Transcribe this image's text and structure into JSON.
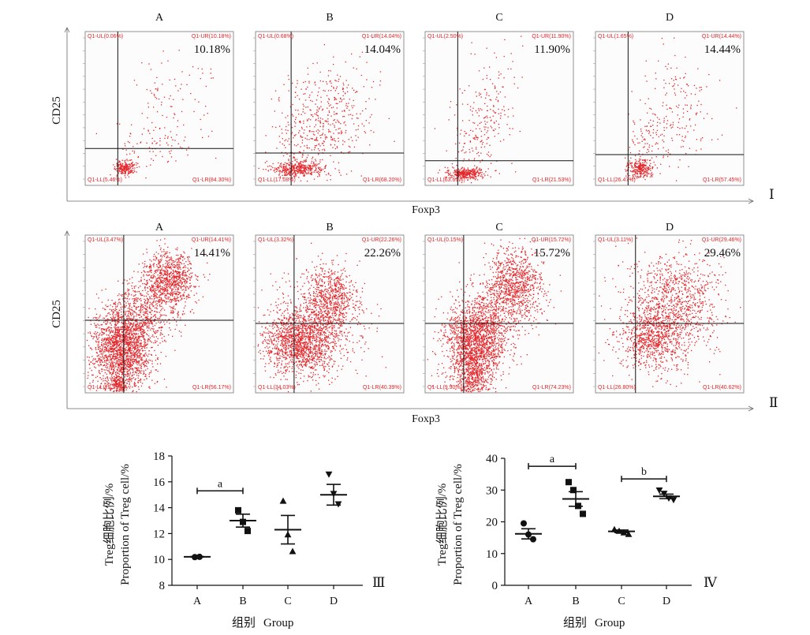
{
  "figure": {
    "rows": [
      {
        "label": "Ⅰ",
        "x_axis_label": "Foxp3",
        "y_axis_label": "CD25",
        "panels": [
          {
            "letter": "A",
            "percent_label": "10.18%",
            "quadrants": {
              "ul": "Q1-UL(0.06%)",
              "ur": "Q1-UR(10.18%)",
              "ll": "Q1-LL(5.46%)",
              "lr": "Q1-LR(84.30%)"
            }
          },
          {
            "letter": "B",
            "percent_label": "14.04%",
            "quadrants": {
              "ul": "Q1-UL(0.68%)",
              "ur": "Q1-UR(14.04%)",
              "ll": "Q1-LL(17.08%)",
              "lr": "Q1-LR(68.20%)"
            }
          },
          {
            "letter": "C",
            "percent_label": "11.90%",
            "quadrants": {
              "ul": "Q1-UL(2.50%)",
              "ur": "Q1-UR(11.90%)",
              "ll": "Q1-LL(63.61%)",
              "lr": "Q1-LR(21.53%)"
            }
          },
          {
            "letter": "D",
            "percent_label": "14.44%",
            "quadrants": {
              "ul": "Q1-UL(1.65%)",
              "ur": "Q1-UR(14.44%)",
              "ll": "Q1-LL(26.47%)",
              "lr": "Q1-LR(57.45%)"
            }
          }
        ]
      },
      {
        "label": "Ⅱ",
        "x_axis_label": "Foxp3",
        "y_axis_label": "CD25",
        "panels": [
          {
            "letter": "A",
            "percent_label": "14.41%",
            "quadrants": {
              "ul": "Q1-UL(3.47%)",
              "ur": "Q1-UR(14.41%)",
              "ll": "Q1-LL(25.95%)",
              "lr": "Q1-LR(56.17%)"
            }
          },
          {
            "letter": "B",
            "percent_label": "22.26%",
            "quadrants": {
              "ul": "Q1-UL(3.32%)",
              "ur": "Q1-UR(22.26%)",
              "ll": "Q1-LL(34.03%)",
              "lr": "Q1-LR(40.39%)"
            }
          },
          {
            "letter": "C",
            "percent_label": "15.72%",
            "quadrants": {
              "ul": "Q1-UL(0.15%)",
              "ur": "Q1-UR(15.72%)",
              "ll": "Q1-LL(9.90%)",
              "lr": "Q1-LR(74.23%)"
            }
          },
          {
            "letter": "D",
            "percent_label": "29.46%",
            "quadrants": {
              "ul": "Q1-UL(3.11%)",
              "ur": "Q1-UR(29.46%)",
              "ll": "Q1-LL(26.80%)",
              "lr": "Q1-LR(40.62%)"
            }
          }
        ]
      }
    ],
    "dot_color": "#e4262a",
    "line_color": "#111111"
  },
  "chart_data": [
    {
      "type": "scatter",
      "panel_label": "Ⅲ",
      "categories": [
        "A",
        "B",
        "C",
        "D"
      ],
      "ylabel_cn": "Treg细胞比例/%",
      "ylabel_en": "Proportion of Treg cell/%",
      "xlabel_cn": "组别",
      "xlabel_en": "Group",
      "ylim": [
        8,
        18
      ],
      "yticks": [
        8,
        10,
        12,
        14,
        16,
        18
      ],
      "markers": [
        "circle",
        "square",
        "triangle-up",
        "triangle-down"
      ],
      "groups": [
        {
          "category": "A",
          "points": [
            10.18,
            10.2
          ],
          "mean": 10.2,
          "sem": 0.02
        },
        {
          "category": "B",
          "points": [
            13.8,
            12.9,
            12.2
          ],
          "mean": 13.0,
          "sem": 0.5
        },
        {
          "category": "C",
          "points": [
            14.5,
            11.9,
            10.6
          ],
          "mean": 12.3,
          "sem": 1.1
        },
        {
          "category": "D",
          "points": [
            16.6,
            15.1,
            14.3
          ],
          "mean": 15.0,
          "sem": 0.8
        }
      ],
      "significance": [
        {
          "label": "a",
          "from": "A",
          "to": "B",
          "y": 15.3
        }
      ]
    },
    {
      "type": "scatter",
      "panel_label": "Ⅳ",
      "categories": [
        "A",
        "B",
        "C",
        "D"
      ],
      "ylabel_cn": "Treg细胞比例/%",
      "ylabel_en": "Proportion of Treg cell/%",
      "xlabel_cn": "组别",
      "xlabel_en": "Group",
      "ylim": [
        0,
        40
      ],
      "yticks": [
        0,
        10,
        20,
        30,
        40
      ],
      "markers": [
        "circle",
        "square",
        "triangle-up",
        "triangle-down"
      ],
      "groups": [
        {
          "category": "A",
          "points": [
            19.5,
            16.0,
            14.5
          ],
          "mean": 16.2,
          "sem": 1.6
        },
        {
          "category": "B",
          "points": [
            32.5,
            30.0,
            25.0,
            22.5
          ],
          "mean": 27.2,
          "sem": 2.3
        },
        {
          "category": "C",
          "points": [
            17.5,
            17.0,
            16.5,
            16.0
          ],
          "mean": 17.0,
          "sem": 0.4
        },
        {
          "category": "D",
          "points": [
            30.0,
            29.0,
            27.5,
            27.0
          ],
          "mean": 28.0,
          "sem": 0.7
        }
      ],
      "significance": [
        {
          "label": "a",
          "from": "A",
          "to": "B",
          "y": 37.5
        },
        {
          "label": "b",
          "from": "C",
          "to": "D",
          "y": 33.5
        }
      ]
    }
  ]
}
